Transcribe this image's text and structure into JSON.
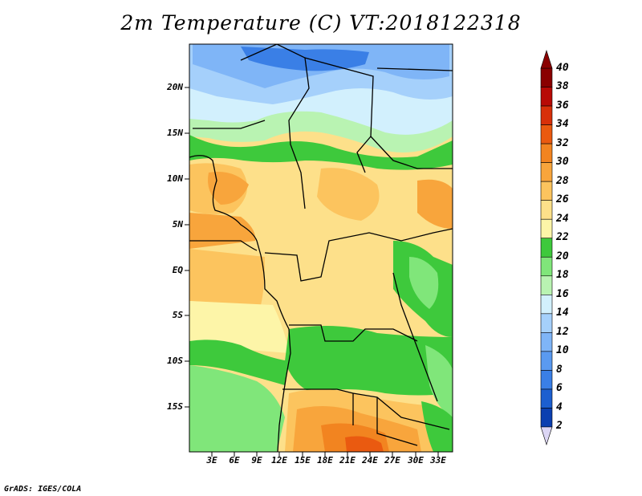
{
  "title": "2m Temperature (C) VT:2018122318",
  "footer": "GrADS: IGES/COLA",
  "map": {
    "lat_labels": [
      "20N",
      "15N",
      "10N",
      "5N",
      "EQ",
      "5S",
      "10S",
      "15S"
    ],
    "lon_labels": [
      "3E",
      "6E",
      "9E",
      "12E",
      "15E",
      "18E",
      "21E",
      "24E",
      "27E",
      "30E",
      "33E"
    ]
  },
  "colorbar": {
    "levels": [
      2,
      4,
      6,
      8,
      10,
      12,
      14,
      16,
      18,
      20,
      22,
      24,
      26,
      28,
      30,
      32,
      34,
      36,
      38,
      40
    ],
    "labels": [
      "40",
      "38",
      "36",
      "34",
      "32",
      "30",
      "28",
      "26",
      "24",
      "22",
      "20",
      "18",
      "16",
      "14",
      "12",
      "10",
      "8",
      "6",
      "4",
      "2"
    ],
    "colors": [
      "#0a1f7a",
      "#0b3fb0",
      "#1c5fd0",
      "#3a7fe6",
      "#5a9af0",
      "#7fb5f7",
      "#a5d0fb",
      "#d2f0fd",
      "#b9f3b2",
      "#80e67a",
      "#3ec93c",
      "#fdf5a8",
      "#fde08a",
      "#fcc45e",
      "#f8a53c",
      "#f28420",
      "#ea5a10",
      "#d8300a",
      "#b80a06",
      "#8a0000"
    ],
    "under_color": "#dcd6f5",
    "over_color": "#8a0000"
  }
}
